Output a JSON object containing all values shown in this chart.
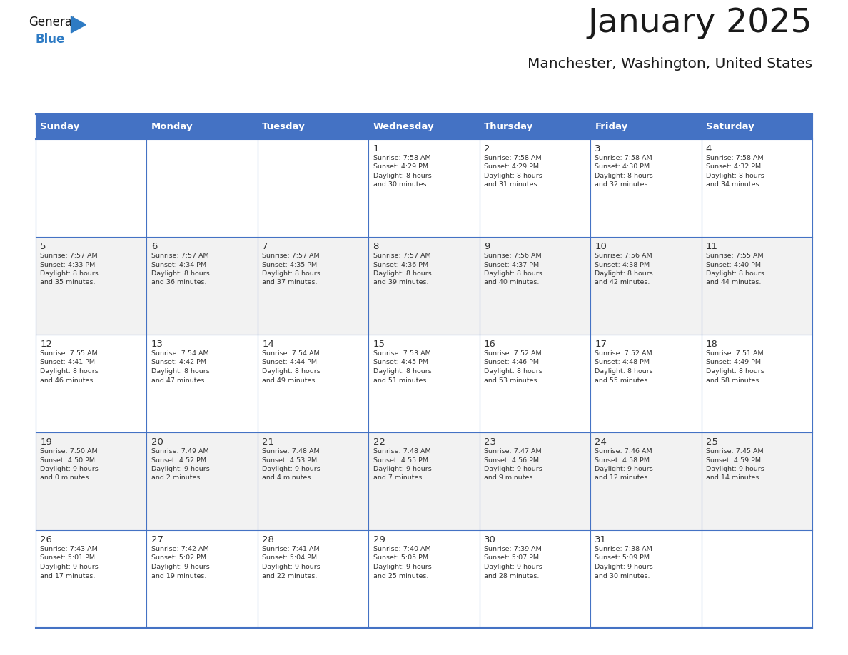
{
  "title": "January 2025",
  "subtitle": "Manchester, Washington, United States",
  "header_bg": "#4472C4",
  "header_text_color": "#FFFFFF",
  "cell_bg_even": "#FFFFFF",
  "cell_bg_odd": "#F2F2F2",
  "grid_line_color": "#4472C4",
  "grid_line_inner_color": "#C0C8E0",
  "text_color": "#333333",
  "day_headers": [
    "Sunday",
    "Monday",
    "Tuesday",
    "Wednesday",
    "Thursday",
    "Friday",
    "Saturday"
  ],
  "weeks": [
    [
      {
        "day": "",
        "info": ""
      },
      {
        "day": "",
        "info": ""
      },
      {
        "day": "",
        "info": ""
      },
      {
        "day": "1",
        "info": "Sunrise: 7:58 AM\nSunset: 4:29 PM\nDaylight: 8 hours\nand 30 minutes."
      },
      {
        "day": "2",
        "info": "Sunrise: 7:58 AM\nSunset: 4:29 PM\nDaylight: 8 hours\nand 31 minutes."
      },
      {
        "day": "3",
        "info": "Sunrise: 7:58 AM\nSunset: 4:30 PM\nDaylight: 8 hours\nand 32 minutes."
      },
      {
        "day": "4",
        "info": "Sunrise: 7:58 AM\nSunset: 4:32 PM\nDaylight: 8 hours\nand 34 minutes."
      }
    ],
    [
      {
        "day": "5",
        "info": "Sunrise: 7:57 AM\nSunset: 4:33 PM\nDaylight: 8 hours\nand 35 minutes."
      },
      {
        "day": "6",
        "info": "Sunrise: 7:57 AM\nSunset: 4:34 PM\nDaylight: 8 hours\nand 36 minutes."
      },
      {
        "day": "7",
        "info": "Sunrise: 7:57 AM\nSunset: 4:35 PM\nDaylight: 8 hours\nand 37 minutes."
      },
      {
        "day": "8",
        "info": "Sunrise: 7:57 AM\nSunset: 4:36 PM\nDaylight: 8 hours\nand 39 minutes."
      },
      {
        "day": "9",
        "info": "Sunrise: 7:56 AM\nSunset: 4:37 PM\nDaylight: 8 hours\nand 40 minutes."
      },
      {
        "day": "10",
        "info": "Sunrise: 7:56 AM\nSunset: 4:38 PM\nDaylight: 8 hours\nand 42 minutes."
      },
      {
        "day": "11",
        "info": "Sunrise: 7:55 AM\nSunset: 4:40 PM\nDaylight: 8 hours\nand 44 minutes."
      }
    ],
    [
      {
        "day": "12",
        "info": "Sunrise: 7:55 AM\nSunset: 4:41 PM\nDaylight: 8 hours\nand 46 minutes."
      },
      {
        "day": "13",
        "info": "Sunrise: 7:54 AM\nSunset: 4:42 PM\nDaylight: 8 hours\nand 47 minutes."
      },
      {
        "day": "14",
        "info": "Sunrise: 7:54 AM\nSunset: 4:44 PM\nDaylight: 8 hours\nand 49 minutes."
      },
      {
        "day": "15",
        "info": "Sunrise: 7:53 AM\nSunset: 4:45 PM\nDaylight: 8 hours\nand 51 minutes."
      },
      {
        "day": "16",
        "info": "Sunrise: 7:52 AM\nSunset: 4:46 PM\nDaylight: 8 hours\nand 53 minutes."
      },
      {
        "day": "17",
        "info": "Sunrise: 7:52 AM\nSunset: 4:48 PM\nDaylight: 8 hours\nand 55 minutes."
      },
      {
        "day": "18",
        "info": "Sunrise: 7:51 AM\nSunset: 4:49 PM\nDaylight: 8 hours\nand 58 minutes."
      }
    ],
    [
      {
        "day": "19",
        "info": "Sunrise: 7:50 AM\nSunset: 4:50 PM\nDaylight: 9 hours\nand 0 minutes."
      },
      {
        "day": "20",
        "info": "Sunrise: 7:49 AM\nSunset: 4:52 PM\nDaylight: 9 hours\nand 2 minutes."
      },
      {
        "day": "21",
        "info": "Sunrise: 7:48 AM\nSunset: 4:53 PM\nDaylight: 9 hours\nand 4 minutes."
      },
      {
        "day": "22",
        "info": "Sunrise: 7:48 AM\nSunset: 4:55 PM\nDaylight: 9 hours\nand 7 minutes."
      },
      {
        "day": "23",
        "info": "Sunrise: 7:47 AM\nSunset: 4:56 PM\nDaylight: 9 hours\nand 9 minutes."
      },
      {
        "day": "24",
        "info": "Sunrise: 7:46 AM\nSunset: 4:58 PM\nDaylight: 9 hours\nand 12 minutes."
      },
      {
        "day": "25",
        "info": "Sunrise: 7:45 AM\nSunset: 4:59 PM\nDaylight: 9 hours\nand 14 minutes."
      }
    ],
    [
      {
        "day": "26",
        "info": "Sunrise: 7:43 AM\nSunset: 5:01 PM\nDaylight: 9 hours\nand 17 minutes."
      },
      {
        "day": "27",
        "info": "Sunrise: 7:42 AM\nSunset: 5:02 PM\nDaylight: 9 hours\nand 19 minutes."
      },
      {
        "day": "28",
        "info": "Sunrise: 7:41 AM\nSunset: 5:04 PM\nDaylight: 9 hours\nand 22 minutes."
      },
      {
        "day": "29",
        "info": "Sunrise: 7:40 AM\nSunset: 5:05 PM\nDaylight: 9 hours\nand 25 minutes."
      },
      {
        "day": "30",
        "info": "Sunrise: 7:39 AM\nSunset: 5:07 PM\nDaylight: 9 hours\nand 28 minutes."
      },
      {
        "day": "31",
        "info": "Sunrise: 7:38 AM\nSunset: 5:09 PM\nDaylight: 9 hours\nand 30 minutes."
      },
      {
        "day": "",
        "info": ""
      }
    ]
  ],
  "logo_general_color": "#1a1a1a",
  "logo_blue_color": "#2e7bc4",
  "logo_triangle_color": "#2e7bc4"
}
